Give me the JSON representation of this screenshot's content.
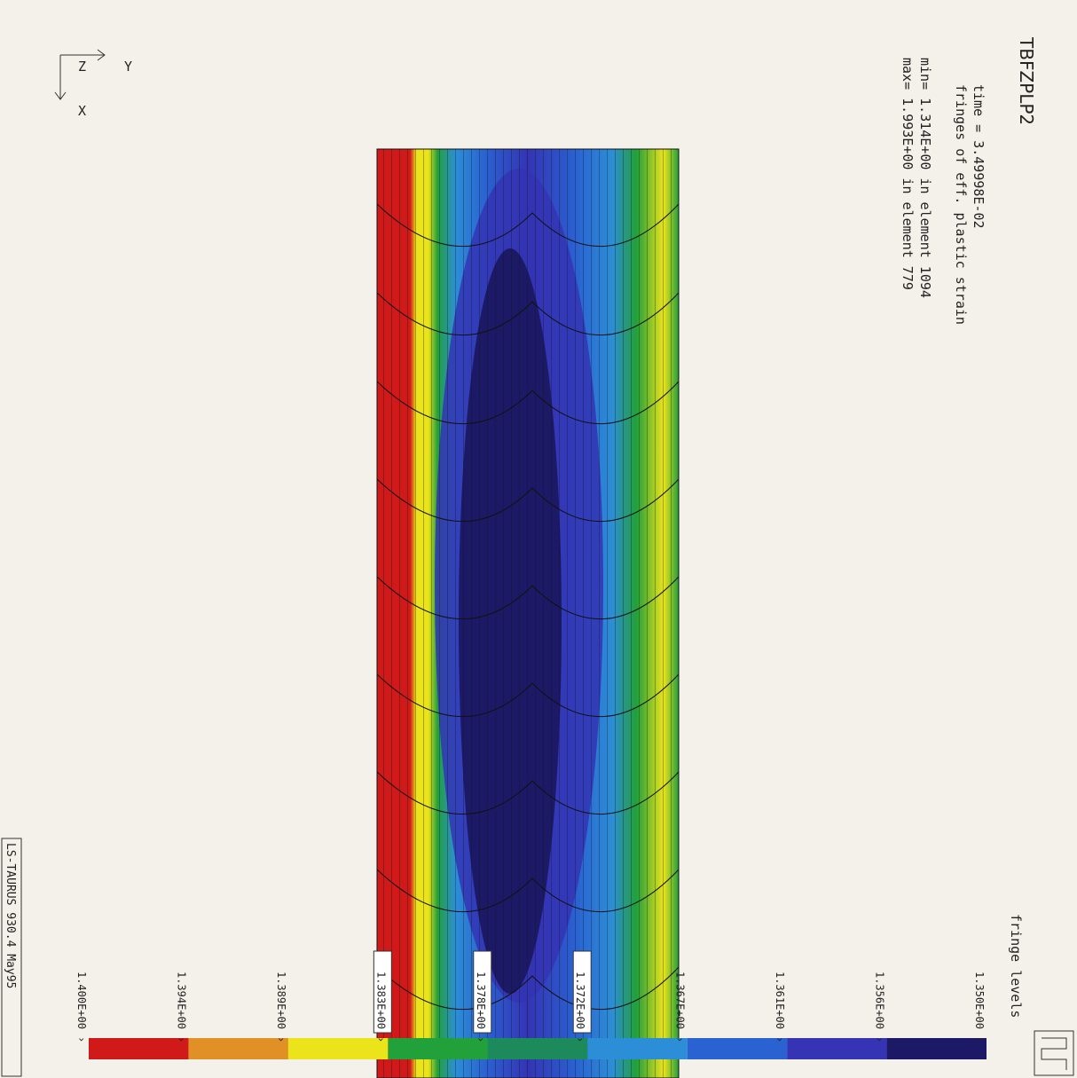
{
  "header": {
    "title": "TBFZPLP2",
    "time": "time =  3.49998E-02",
    "quantity": "fringes of eff. plastic strain",
    "min": "min= 1.314E+00 in element 1094",
    "max": "max= 1.993E+00 in element 779"
  },
  "triad": {
    "y": "Y",
    "z": "Z",
    "x": "X"
  },
  "legend": {
    "title": "fringe levels",
    "levels": [
      "1.350E+00",
      "1.356E+00",
      "1.361E+00",
      "1.367E+00",
      "1.372E+00",
      "1.378E+00",
      "1.383E+00",
      "1.389E+00",
      "1.394E+00",
      "1.400E+00"
    ],
    "colors": [
      "#1c1a66",
      "#3434b4",
      "#2a62d2",
      "#2c8ed6",
      "#1c8a5a",
      "#22a03a",
      "#ece41a",
      "#e09024",
      "#d01a1a"
    ]
  },
  "footer": "LS-TAURUS 930.4  May95"
}
